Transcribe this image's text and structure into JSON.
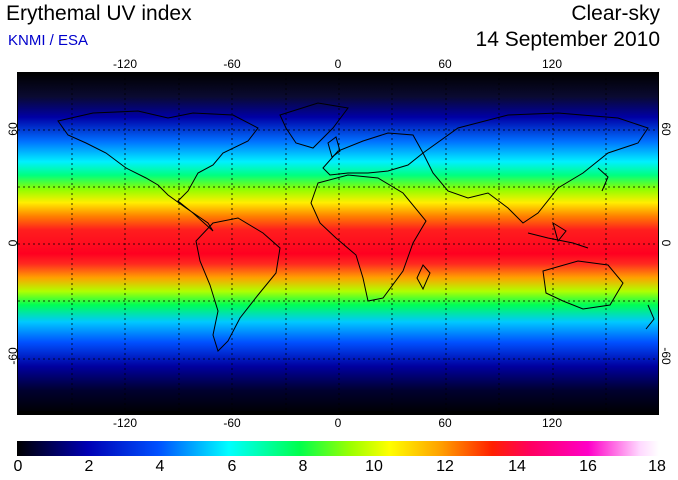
{
  "header": {
    "title": "Erythemal UV index",
    "credit": "KNMI / ESA",
    "condition": "Clear-sky",
    "date": "14 September 2010"
  },
  "map": {
    "lon_labels": [
      "-120",
      "-60",
      "0",
      "60",
      "120"
    ],
    "lat_labels": [
      "60",
      "0",
      "-60"
    ],
    "grid": "dotted, every 30 degrees",
    "high_uv_color": "#ff0020",
    "low_uv_color": "#000000"
  },
  "colorbar": {
    "tick_labels": [
      "0",
      "2",
      "4",
      "6",
      "8",
      "10",
      "12",
      "14",
      "16",
      "18"
    ]
  }
}
